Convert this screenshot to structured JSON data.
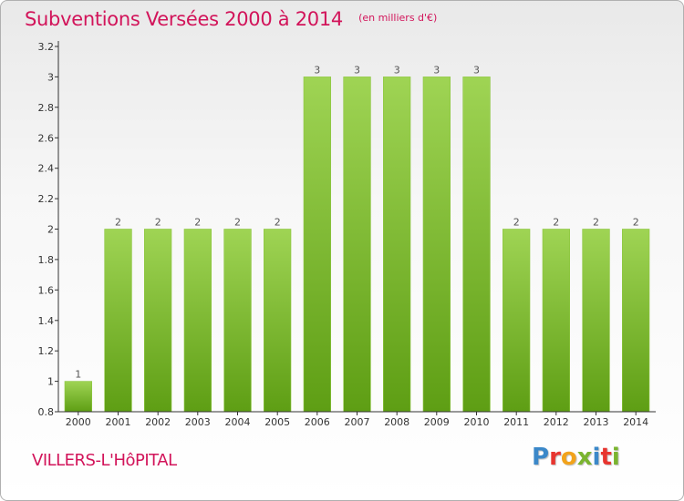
{
  "header": {
    "title": "Subventions Versées 2000 à 2014",
    "subtitle": "(en milliers d'€)"
  },
  "footer": {
    "commune": "VILLERS-L'HôPITAL",
    "logo_text": "Proxiti",
    "logo_colors": [
      "#3b88c9",
      "#e8352f",
      "#f2a31b",
      "#7ab42f",
      "#3b88c9",
      "#e8352f",
      "#7ab42f"
    ]
  },
  "colors": {
    "text_accent": "#d2145a",
    "bar_top": "#9fd454",
    "bar_bottom": "#5e9e14",
    "axis": "#333333"
  },
  "chart_data": {
    "type": "bar",
    "categories": [
      "2000",
      "2001",
      "2002",
      "2003",
      "2004",
      "2005",
      "2006",
      "2007",
      "2008",
      "2009",
      "2010",
      "2011",
      "2012",
      "2013",
      "2014"
    ],
    "values": [
      1,
      2,
      2,
      2,
      2,
      2,
      3,
      3,
      3,
      3,
      3,
      2,
      2,
      2,
      2
    ],
    "data_labels": [
      "1",
      "2",
      "2",
      "2",
      "2",
      "2",
      "3",
      "3",
      "3",
      "3",
      "3",
      "2",
      "2",
      "2",
      "2"
    ],
    "ylim": [
      0.8,
      3.2
    ],
    "yticks": [
      0.8,
      1,
      1.2,
      1.4,
      1.6,
      1.8,
      2,
      2.2,
      2.4,
      2.6,
      2.8,
      3,
      3.2
    ],
    "ytick_labels": [
      "0.8",
      "1",
      "1.2",
      "1.4",
      "1.6",
      "1.8",
      "2",
      "2.2",
      "2.4",
      "2.6",
      "2.8",
      "3",
      "3.2"
    ],
    "grid": false,
    "legend": "none"
  }
}
